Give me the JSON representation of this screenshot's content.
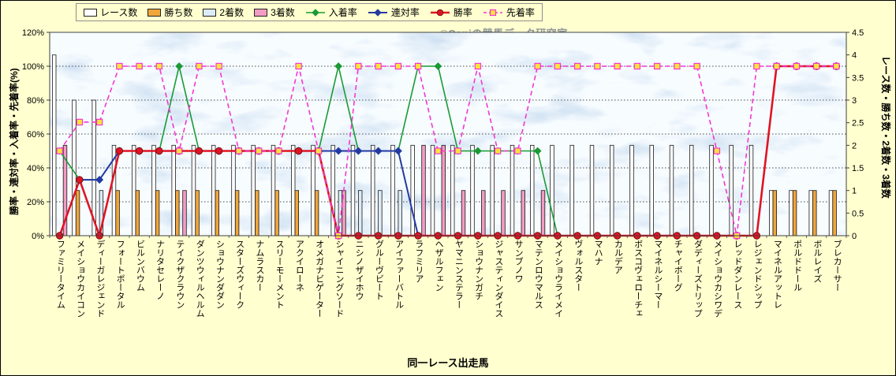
{
  "watermark": "©Caniの競馬データ研究室",
  "axes": {
    "left_title": "勝率・連対率・入着率・先着率(%)",
    "right_title": "レース数・勝ち数・2着数・3着数",
    "x_title": "同一レース出走馬",
    "left_ticks": [
      "0%",
      "20%",
      "40%",
      "60%",
      "80%",
      "100%",
      "120%"
    ],
    "right_ticks": [
      "0",
      "0.5",
      "1",
      "1.5",
      "2",
      "2.5",
      "3",
      "3.5",
      "4",
      "4.5"
    ]
  },
  "chart_data": {
    "type": "combo (clustered bars + lines)",
    "title": "",
    "xlabel": "同一レース出走馬",
    "ylabel_left": "勝率・連対率・入着率・先着率(%)",
    "ylabel_right": "レース数・勝ち数・2着数・3着数",
    "left_axis": {
      "min": 0,
      "max": 120,
      "step": 20,
      "unit": "%"
    },
    "right_axis": {
      "min": 0,
      "max": 4.5,
      "step": 0.5
    },
    "grid": true,
    "legend_position": "top",
    "categories": [
      "ファミリータイム",
      "メイショウカイコン",
      "ディーガレジェンド",
      "フォートポータル",
      "ビルンバウム",
      "ナリタセレーノ",
      "テイクザクラウン",
      "ダンツウィルヘルム",
      "ショウナンダダン",
      "スターズウィーク",
      "ナムラスカー",
      "スリーモーメント",
      "アクイローネ",
      "オメガナビゲーター",
      "シャイニングソード",
      "ニシノザイホウ",
      "グルーヴビート",
      "アイファーバトル",
      "ラフミリア",
      "ヘザルフェン",
      "ヤマニンステラー",
      "ショウナンガチ",
      "ジャスティンダイス",
      "サンブノワ",
      "マテンロウマルス",
      "メイショウライメイ",
      "ヴォルスター",
      "マハナ",
      "カルデア",
      "ボスコヴェローチェ",
      "マイネルシーマー",
      "チャイボーグ",
      "ダディーズトリップ",
      "メイショウカシワデ",
      "レッドダンレース",
      "レジェンドシップ",
      "マイネルアットレ",
      "ポルドドール",
      "ボルレイズ",
      "ブレカーサー"
    ],
    "series": [
      {
        "name": "レース数",
        "id": "race-count",
        "type": "bar",
        "axis": "right",
        "color": "#ffffff",
        "values": [
          4,
          3,
          3,
          2,
          2,
          2,
          2,
          2,
          2,
          2,
          2,
          2,
          2,
          2,
          2,
          2,
          2,
          2,
          2,
          2,
          2,
          2,
          2,
          2,
          2,
          2,
          2,
          2,
          2,
          2,
          2,
          2,
          2,
          2,
          2,
          2,
          1,
          1,
          1,
          1
        ]
      },
      {
        "name": "勝ち数",
        "id": "win-count",
        "type": "bar",
        "axis": "right",
        "color": "#efa63a",
        "values": [
          0,
          1,
          0,
          1,
          1,
          1,
          1,
          1,
          1,
          1,
          1,
          1,
          1,
          1,
          0,
          0,
          0,
          0,
          0,
          0,
          0,
          0,
          0,
          0,
          0,
          0,
          0,
          0,
          0,
          0,
          0,
          0,
          0,
          0,
          0,
          0,
          1,
          1,
          1,
          1
        ]
      },
      {
        "name": "2着数",
        "id": "second-count",
        "type": "bar",
        "axis": "right",
        "color": "#dcebf5",
        "values": [
          0,
          0,
          1,
          0,
          0,
          0,
          0,
          0,
          0,
          0,
          0,
          0,
          0,
          0,
          1,
          1,
          1,
          1,
          0,
          0,
          0,
          0,
          0,
          0,
          0,
          0,
          0,
          0,
          0,
          0,
          0,
          0,
          0,
          0,
          0,
          0,
          0,
          0,
          0,
          0
        ]
      },
      {
        "name": "3着数",
        "id": "third-count",
        "type": "bar",
        "axis": "right",
        "color": "#f29cc3",
        "values": [
          2,
          0,
          0,
          0,
          0,
          0,
          1,
          0,
          0,
          0,
          0,
          0,
          0,
          0,
          1,
          0,
          0,
          0,
          2,
          2,
          1,
          1,
          1,
          1,
          1,
          0,
          0,
          0,
          0,
          0,
          0,
          0,
          0,
          0,
          0,
          0,
          0,
          0,
          0,
          0
        ]
      },
      {
        "name": "入着率",
        "id": "placing-rate",
        "type": "line",
        "axis": "left",
        "color": "#199a34",
        "marker": "diamond",
        "marker_fill": "#199a34",
        "width": 1.6,
        "dashed": false,
        "values": [
          50,
          33,
          33,
          50,
          50,
          50,
          100,
          50,
          50,
          50,
          50,
          50,
          50,
          50,
          100,
          50,
          50,
          50,
          100,
          100,
          50,
          50,
          50,
          50,
          50,
          0,
          0,
          0,
          0,
          0,
          0,
          0,
          0,
          0,
          0,
          0,
          100,
          100,
          100,
          100
        ]
      },
      {
        "name": "連対率",
        "id": "quinella-rate",
        "type": "line",
        "axis": "left",
        "color": "#2439a4",
        "marker": "diamond",
        "marker_fill": "#2439a4",
        "width": 2,
        "dashed": false,
        "values": [
          0,
          33,
          33,
          50,
          50,
          50,
          50,
          50,
          50,
          50,
          50,
          50,
          50,
          50,
          50,
          50,
          50,
          50,
          0,
          0,
          0,
          0,
          0,
          0,
          0,
          0,
          0,
          0,
          0,
          0,
          0,
          0,
          0,
          0,
          0,
          0,
          100,
          100,
          100,
          100
        ]
      },
      {
        "name": "勝率",
        "id": "win-rate",
        "type": "line",
        "axis": "left",
        "color": "#df1524",
        "marker": "circle",
        "marker_fill": "#df1524",
        "width": 2.6,
        "dashed": false,
        "values": [
          0,
          33,
          0,
          50,
          50,
          50,
          50,
          50,
          50,
          50,
          50,
          50,
          50,
          50,
          0,
          0,
          0,
          0,
          0,
          0,
          0,
          0,
          0,
          0,
          0,
          0,
          0,
          0,
          0,
          0,
          0,
          0,
          0,
          0,
          0,
          0,
          100,
          100,
          100,
          100
        ]
      },
      {
        "name": "先着率",
        "id": "precede-rate",
        "type": "line",
        "axis": "left",
        "color": "#f536d2",
        "marker": "square",
        "marker_fill": "#ffe23c",
        "width": 1.6,
        "dashed": true,
        "values": [
          50,
          67,
          67,
          100,
          100,
          100,
          50,
          100,
          100,
          50,
          50,
          50,
          100,
          50,
          0,
          100,
          100,
          100,
          100,
          50,
          50,
          100,
          50,
          50,
          100,
          100,
          100,
          100,
          100,
          100,
          100,
          100,
          100,
          50,
          0,
          100,
          100,
          100,
          100,
          100
        ]
      }
    ]
  }
}
